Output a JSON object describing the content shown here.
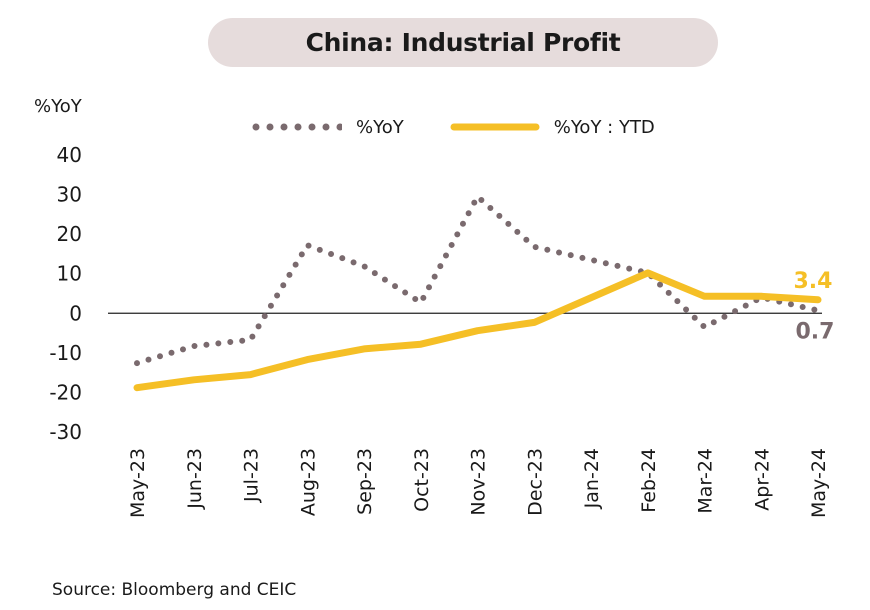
{
  "header": {
    "title": "China: Industrial Profit"
  },
  "y_unit": "%YoY",
  "legend": [
    {
      "label": "%YoY",
      "style": "dotted",
      "color": "#7a6a6e"
    },
    {
      "label": "%YoY : YTD",
      "style": "solid",
      "color": "#f5bf26"
    }
  ],
  "chart_data": {
    "type": "line",
    "title": "China: Industrial Profit",
    "xlabel": "",
    "ylabel": "%YoY",
    "ylim": [
      -30,
      40
    ],
    "yticks": [
      40,
      30,
      20,
      10,
      0,
      -10,
      -20,
      -30
    ],
    "categories": [
      "May-23",
      "Jun-23",
      "Jul-23",
      "Aug-23",
      "Sep-23",
      "Oct-23",
      "Nov-23",
      "Dec-23",
      "Jan-24",
      "Feb-24",
      "Mar-24",
      "Apr-24",
      "May-24"
    ],
    "series": [
      {
        "name": "%YoY",
        "style": "dotted",
        "color": "#7a6a6e",
        "values": [
          -12.6,
          -8.3,
          -6.7,
          17.2,
          11.9,
          2.7,
          29.5,
          16.8,
          null,
          10.2,
          -3.5,
          4.0,
          0.7
        ]
      },
      {
        "name": "%YoY : YTD",
        "style": "solid",
        "color": "#f5bf26",
        "values": [
          -18.8,
          -16.8,
          -15.5,
          -11.7,
          -9.0,
          -7.8,
          -4.4,
          -2.3,
          null,
          10.2,
          4.3,
          4.3,
          3.4
        ]
      }
    ],
    "annotations": [
      {
        "text": "3.4",
        "series": "%YoY : YTD",
        "color": "#f5bf26"
      },
      {
        "text": "0.7",
        "series": "%YoY",
        "color": "#7a6a6e"
      }
    ],
    "zero_line": true,
    "grid": false,
    "legend_position": "top"
  },
  "footer": {
    "source": "Source: Bloomberg and CEIC"
  }
}
